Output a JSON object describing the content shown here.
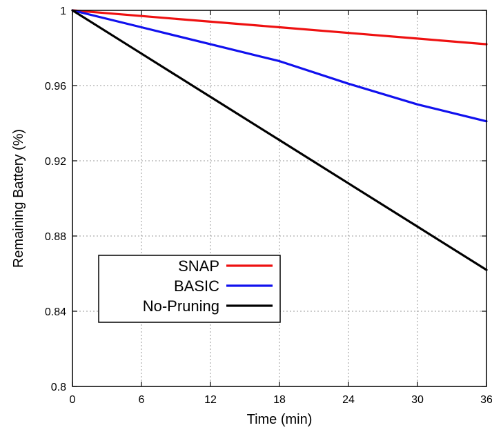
{
  "chart_data": {
    "type": "line",
    "title": "",
    "xlabel": "Time (min)",
    "ylabel": "Remaining Battery (%)",
    "xlim": [
      0,
      36
    ],
    "ylim": [
      0.8,
      1.0
    ],
    "x_ticks": [
      0,
      6,
      12,
      18,
      24,
      30,
      36
    ],
    "x_tick_labels": [
      "0",
      "6",
      "12",
      "18",
      "24",
      "30",
      "36"
    ],
    "y_ticks": [
      0.8,
      0.84,
      0.88,
      0.92,
      0.96,
      1.0
    ],
    "y_tick_labels": [
      "0.8",
      "0.84",
      "0.88",
      "0.92",
      "0.96",
      "1"
    ],
    "grid": true,
    "legend_position": "bottom-left",
    "series": [
      {
        "name": "SNAP",
        "color": "#ee1111",
        "x": [
          0,
          6,
          12,
          18,
          24,
          30,
          36
        ],
        "y": [
          1.0,
          0.997,
          0.994,
          0.991,
          0.988,
          0.985,
          0.982
        ]
      },
      {
        "name": "BASIC",
        "color": "#1111ee",
        "x": [
          0,
          6,
          12,
          18,
          24,
          30,
          36
        ],
        "y": [
          1.0,
          0.991,
          0.982,
          0.973,
          0.961,
          0.95,
          0.941
        ]
      },
      {
        "name": "No-Pruning",
        "color": "#000000",
        "x": [
          0,
          6,
          12,
          18,
          24,
          30,
          36
        ],
        "y": [
          1.0,
          0.977,
          0.954,
          0.931,
          0.908,
          0.885,
          0.862
        ]
      }
    ]
  }
}
